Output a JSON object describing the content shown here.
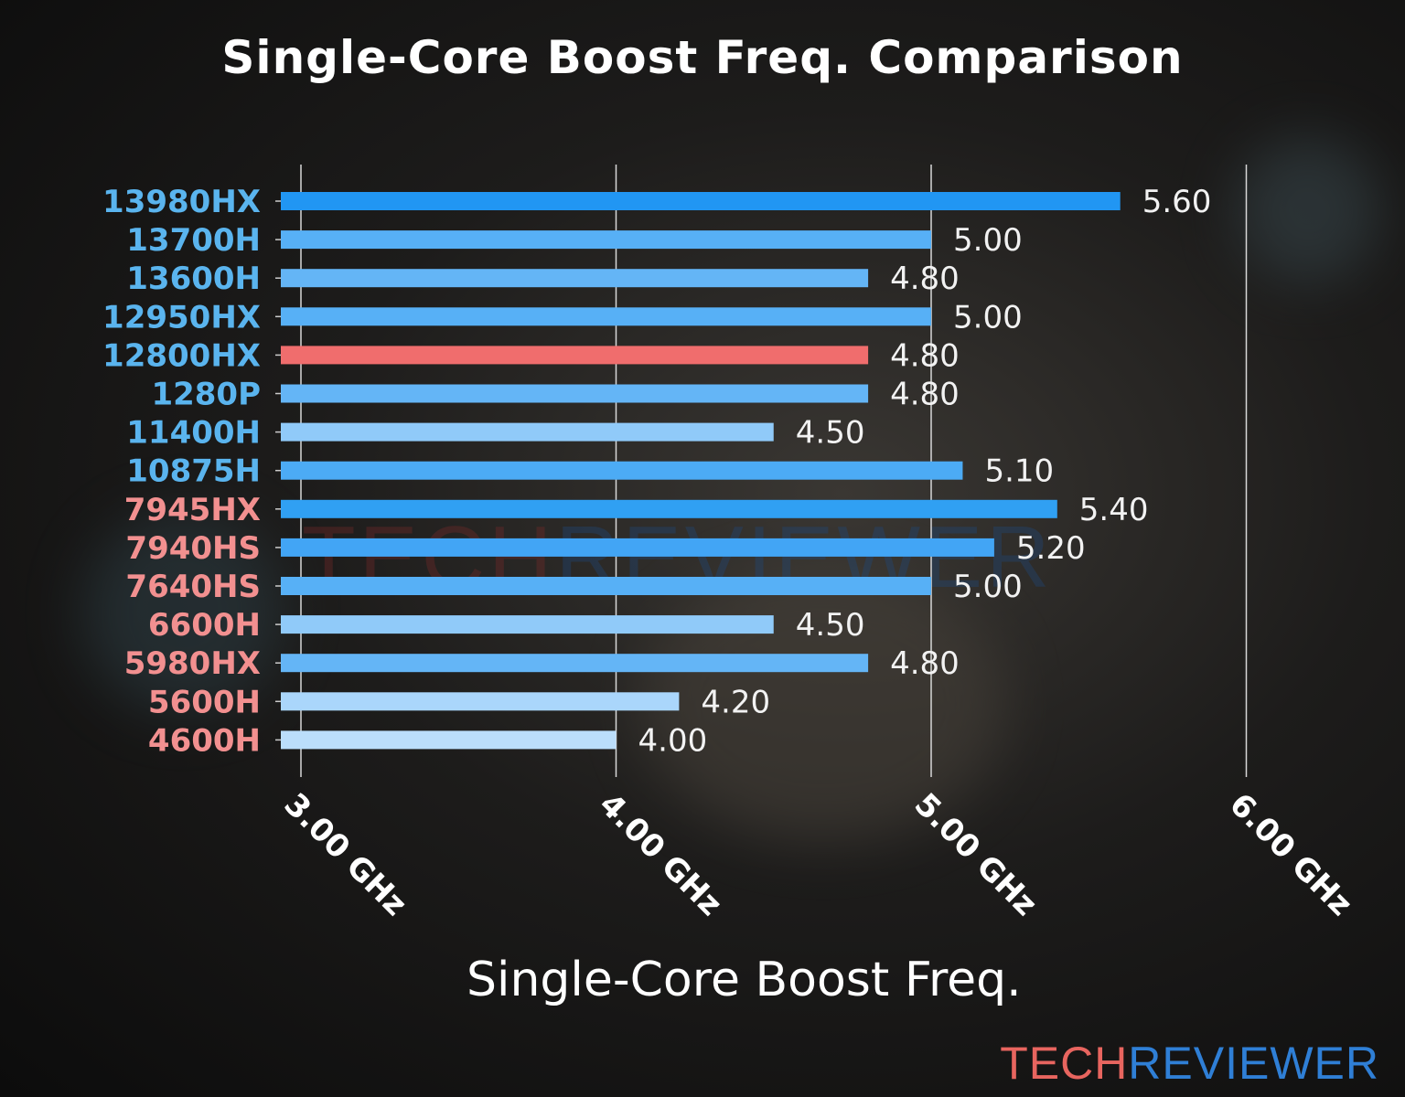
{
  "chart_data": {
    "type": "bar",
    "orientation": "horizontal",
    "title": "Single-Core Boost Freq. Comparison",
    "xlabel": "Single-Core Boost Freq.",
    "ylabel": "",
    "xlim": [
      2.94,
      6.0
    ],
    "xticks": [
      3.0,
      4.0,
      5.0,
      6.0
    ],
    "xtick_labels": [
      "3.00 GHz",
      "4.00 GHz",
      "5.00 GHz",
      "6.00 GHz"
    ],
    "grid": "vertical lines on",
    "categories": [
      "13980HX",
      "13700H",
      "13600H",
      "12950HX",
      "12800HX",
      "1280P",
      "11400H",
      "10875H",
      "7945HX",
      "7940HS",
      "7640HS",
      "6600H",
      "5980HX",
      "5600H",
      "4600H"
    ],
    "values": [
      5.6,
      5.0,
      4.8,
      5.0,
      4.8,
      4.8,
      4.5,
      5.1,
      5.4,
      5.2,
      5.0,
      4.5,
      4.8,
      4.2,
      4.0
    ],
    "value_labels": [
      "5.60",
      "5.00",
      "4.80",
      "5.00",
      "4.80",
      "4.80",
      "4.50",
      "5.10",
      "5.40",
      "5.20",
      "5.00",
      "4.50",
      "4.80",
      "4.20",
      "4.00"
    ],
    "category_brand": [
      "intel",
      "intel",
      "intel",
      "intel",
      "intel",
      "intel",
      "intel",
      "intel",
      "amd",
      "amd",
      "amd",
      "amd",
      "amd",
      "amd",
      "amd"
    ],
    "highlighted": "12800HX"
  },
  "colors": {
    "intel_label": "#5ab4ee",
    "amd_label": "#f29090",
    "highlight_bar": "#f06d6d",
    "bar_scale": {
      "4.0": "#bbdefb",
      "4.2": "#aad6fb",
      "4.5": "#90caf9",
      "4.8": "#64b5f6",
      "5.0": "#57b0f6",
      "5.1": "#4cabf5",
      "5.2": "#42a5f5",
      "5.4": "#30a0f3",
      "5.6": "#2196f3"
    },
    "logo_tech": "#e8655f",
    "logo_reviewer": "#2f7fd6"
  },
  "watermark": {
    "part1": "TECH",
    "part2": "REVIEWER"
  },
  "logo": {
    "part1": "TECH",
    "part2": "REVIEWER"
  }
}
